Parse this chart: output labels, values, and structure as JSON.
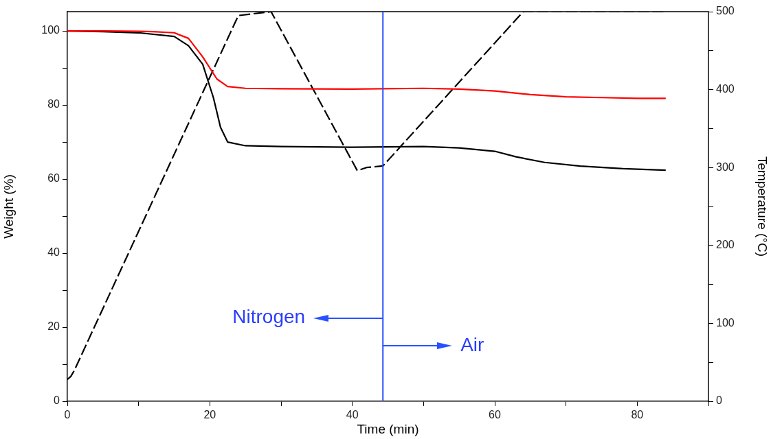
{
  "chart_data": {
    "type": "line",
    "xlabel": "Time (min)",
    "ylabel": "Weight (%)",
    "y2label": "Temperature (°C)",
    "xlim": [
      0,
      90
    ],
    "xticks": [
      0,
      {
        "value": 10,
        "label": null
      },
      20,
      {
        "value": 30,
        "label": null
      },
      40,
      {
        "value": 50,
        "label": null
      },
      60,
      {
        "value": 70,
        "label": null
      },
      80,
      {
        "value": 90,
        "label": null
      }
    ],
    "ylim": [
      0,
      105.2
    ],
    "yticks": [
      0,
      {
        "value": 10,
        "label": null
      },
      20,
      {
        "value": 30,
        "label": null
      },
      40,
      {
        "value": 50,
        "label": null
      },
      60,
      {
        "value": 70,
        "label": null
      },
      80,
      {
        "value": 90,
        "label": null
      },
      100
    ],
    "y2lim": [
      0,
      500
    ],
    "y2ticks": [
      0,
      {
        "value": 50,
        "label": null
      },
      100,
      {
        "value": 150,
        "label": null
      },
      200,
      {
        "value": 250,
        "label": null
      },
      300,
      {
        "value": 350,
        "label": null
      },
      400,
      {
        "value": 450,
        "label": null
      },
      500
    ],
    "grid": false,
    "legend": false,
    "marker": "none",
    "series": [
      {
        "color": "#ff0000",
        "line_style": "solid",
        "x": [
          0,
          5,
          10,
          12,
          15,
          17,
          19,
          21,
          22.5,
          25,
          30,
          40,
          50,
          55,
          60,
          65,
          70,
          75,
          80,
          84
        ],
        "values": [
          100,
          100,
          99.9,
          99.8,
          99.5,
          98,
          93,
          87,
          85,
          84.5,
          84.4,
          84.3,
          84.5,
          84.3,
          83.8,
          82.8,
          82.2,
          82,
          81.8,
          81.8
        ]
      },
      {
        "color": "#000000",
        "line_style": "solid",
        "x": [
          0,
          5,
          10,
          15,
          17,
          19,
          20.5,
          21.5,
          22.5,
          25,
          30,
          40,
          50,
          55,
          60,
          63,
          67,
          72,
          78,
          84
        ],
        "values": [
          100,
          99.8,
          99.5,
          98.5,
          96,
          91,
          82,
          74,
          70,
          69,
          68.8,
          68.6,
          68.8,
          68.4,
          67.5,
          66,
          64.5,
          63.5,
          62.8,
          62.4
        ]
      },
      {
        "color": "#000000",
        "line_style": "dashed",
        "axis": "y2",
        "x": [
          0,
          0.5,
          1,
          24,
          28.6,
          40.7,
          42,
          44.3,
          64,
          84
        ],
        "values": [
          28,
          32,
          40,
          495,
          500,
          296,
          300,
          302,
          500,
          500
        ]
      }
    ],
    "ref_lines": [
      {
        "axis": "x",
        "value": 44.3,
        "color": "#2950ff",
        "line_style": "solid"
      }
    ],
    "annotations": [
      {
        "text": "Nitrogen",
        "x": 44.3,
        "y": 22.5
      },
      {
        "text": "Air",
        "x": 44.3,
        "y": 15
      }
    ]
  }
}
